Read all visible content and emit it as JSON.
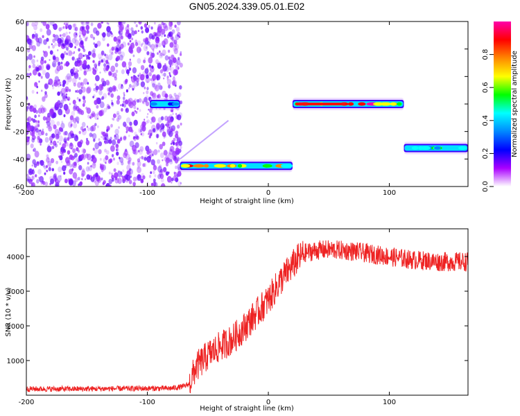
{
  "title": "GN05.2024.339.05.01.E02",
  "colors": {
    "signal": "#ff1818",
    "noise": "#8a2be2",
    "colorbar": [
      "#ff00aa",
      "#ff0000",
      "#ff8800",
      "#ffff00",
      "#00ff00",
      "#00ffff",
      "#0088ff",
      "#0000ff",
      "#aa00ff",
      "#ffffff"
    ]
  },
  "chart_data": [
    {
      "type": "heatmap",
      "xlabel": "Height of straight line (km)",
      "ylabel": "Frequency (Hz)",
      "xlim": [
        -200,
        165
      ],
      "ylim": [
        -60,
        60
      ],
      "xticks": [
        -200,
        -100,
        0,
        100
      ],
      "yticks": [
        -60,
        -40,
        -20,
        0,
        20,
        40,
        60
      ],
      "colorbar": {
        "label": "Normalized spectral amplitude",
        "range": [
          0,
          1
        ],
        "ticks": [
          "0.0",
          "0.2",
          "0.4",
          "0.6",
          "0.8"
        ]
      },
      "noise_region": {
        "x": [
          -200,
          -72
        ],
        "y": [
          -60,
          60
        ]
      },
      "segments": [
        {
          "x": [
            -98,
            -73
          ],
          "y": 0,
          "peak": 0.35
        },
        {
          "x": [
            -73,
            20
          ],
          "y": -45,
          "peak": 0.95
        },
        {
          "x": [
            20,
            112
          ],
          "y": 0,
          "peak": 1.0
        },
        {
          "x": [
            112,
            165
          ],
          "y": -32,
          "peak": 0.6
        }
      ]
    },
    {
      "type": "line",
      "xlabel": "Height of straight line (km)",
      "ylabel": "SNR (10 * v/v)",
      "xlim": [
        -200,
        165
      ],
      "ylim": [
        0,
        4800
      ],
      "xticks": [
        -200,
        -100,
        0,
        100
      ],
      "yticks": [
        1000,
        2000,
        3000,
        4000
      ],
      "series": [
        {
          "x": [
            -200,
            -160,
            -120,
            -80,
            -70,
            -65,
            -60,
            -50,
            -40,
            -30,
            -20,
            -10,
            0,
            10,
            20,
            25,
            30,
            40,
            50,
            60,
            70,
            80,
            90,
            100,
            110,
            120,
            130,
            140,
            150,
            160,
            165
          ],
          "values": [
            180,
            180,
            190,
            200,
            250,
            330,
            800,
            1150,
            1400,
            1600,
            1950,
            2350,
            2750,
            3300,
            3750,
            3950,
            4100,
            4180,
            4200,
            4180,
            4150,
            4100,
            4050,
            4000,
            3950,
            3900,
            3880,
            3850,
            3850,
            3850,
            3850
          ]
        }
      ]
    }
  ]
}
